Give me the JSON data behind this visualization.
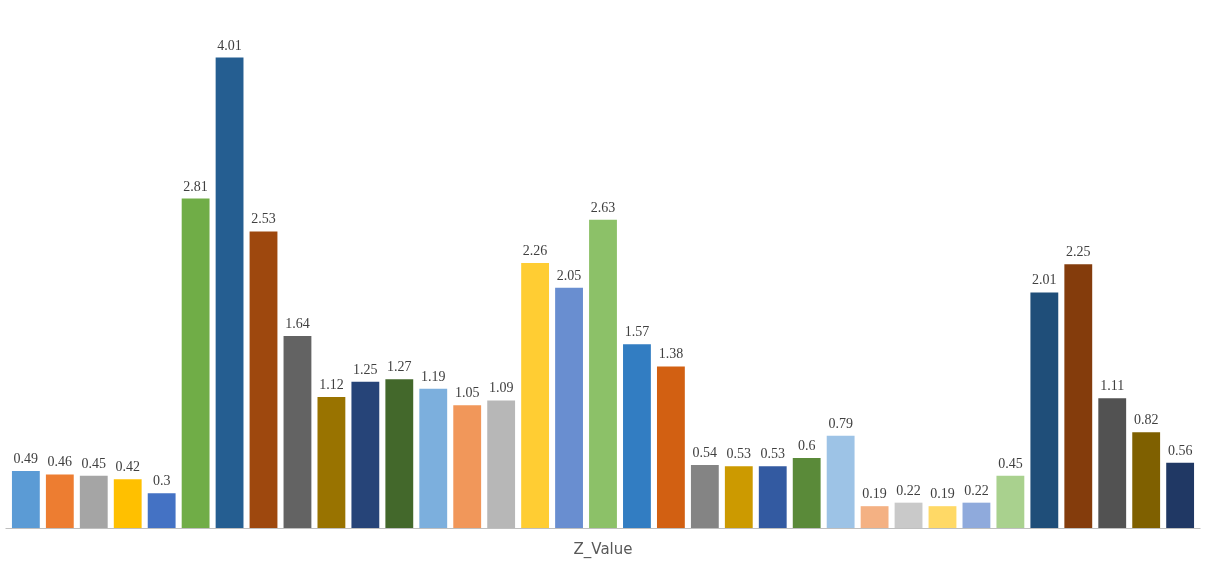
{
  "chart_data": {
    "type": "bar",
    "xlabel": "Z_Value",
    "data_labels": true,
    "categories": [
      null,
      null,
      null,
      null,
      null,
      null,
      null,
      null,
      null,
      null,
      null,
      null,
      null,
      null,
      null,
      null,
      null,
      null,
      null,
      null,
      null,
      null,
      null,
      null,
      null,
      null,
      null,
      null,
      null,
      null,
      null,
      null,
      null,
      null,
      null
    ],
    "values": [
      0.49,
      0.46,
      0.45,
      0.42,
      0.3,
      2.81,
      4.01,
      2.53,
      1.64,
      1.12,
      1.25,
      1.27,
      1.19,
      1.05,
      1.09,
      2.26,
      2.05,
      2.63,
      1.57,
      1.38,
      0.54,
      0.53,
      0.53,
      0.6,
      0.79,
      0.19,
      0.22,
      0.19,
      0.22,
      0.45,
      2.01,
      2.25,
      1.11,
      0.82,
      0.56
    ],
    "colors": [
      "#5b9bd5",
      "#ed7d31",
      "#a5a5a5",
      "#ffc000",
      "#4472c4",
      "#70ad47",
      "#255e91",
      "#9e480e",
      "#636363",
      "#997300",
      "#264478",
      "#43682b",
      "#7cafdd",
      "#f1975a",
      "#b7b7b7",
      "#ffcd33",
      "#698ed0",
      "#8cc168",
      "#327dc2",
      "#d26012",
      "#848484",
      "#cc9a00",
      "#335aa1",
      "#5a8a39",
      "#9dc3e6",
      "#f4b183",
      "#c9c9c9",
      "#ffd966",
      "#8faadc",
      "#a9d18e",
      "#1f4e79",
      "#843c0c",
      "#525252",
      "#7f6000",
      "#203864"
    ]
  }
}
